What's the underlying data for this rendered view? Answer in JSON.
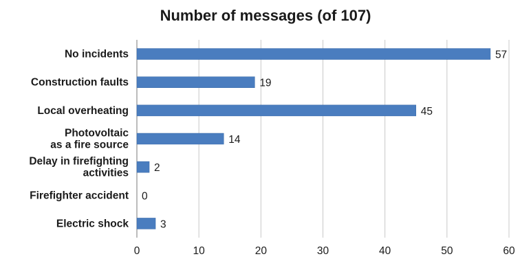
{
  "chart_data": {
    "type": "bar",
    "orientation": "horizontal",
    "title": "Number of messages (of 107)",
    "categories": [
      [
        "No incidents"
      ],
      [
        "Construction faults"
      ],
      [
        "Local overheating"
      ],
      [
        "Photovoltaic",
        "as a fire source"
      ],
      [
        "Delay in firefighting",
        "activities"
      ],
      [
        "Firefighter accident"
      ],
      [
        "Electric shock"
      ]
    ],
    "values": [
      57,
      19,
      45,
      14,
      2,
      0,
      3
    ],
    "xlim": [
      0,
      60
    ],
    "xticks": [
      0,
      10,
      20,
      30,
      40,
      50,
      60
    ],
    "grid": "vertical",
    "bar_color": "#4a7dbf",
    "data_labels": true
  }
}
